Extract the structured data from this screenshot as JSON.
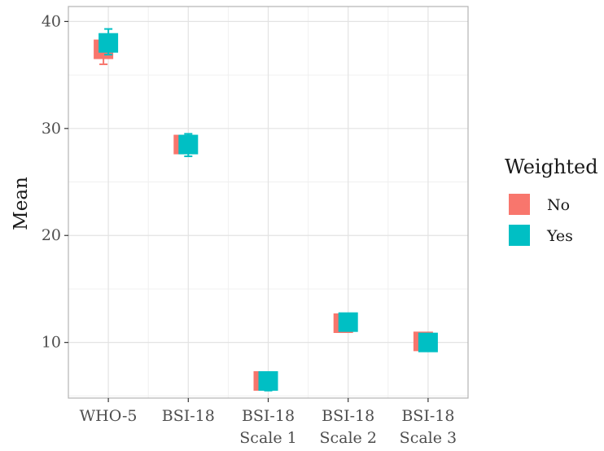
{
  "chart_data": {
    "type": "scatter",
    "ylabel": "Mean",
    "xlabel": "",
    "ylim": [
      4.8,
      41.4
    ],
    "yticks": [
      10,
      20,
      30,
      40
    ],
    "grid": true,
    "categories": [
      [
        "WHO-5"
      ],
      [
        "BSI-18"
      ],
      [
        "BSI-18",
        "Scale 1"
      ],
      [
        "BSI-18",
        "Scale 2"
      ],
      [
        "BSI-18",
        "Scale 3"
      ]
    ],
    "legend": {
      "title": "Weighted",
      "position": "right"
    },
    "series": [
      {
        "name": "No",
        "color": "#F8766D",
        "values": [
          37.4,
          28.5,
          6.4,
          11.8,
          10.1
        ],
        "error_low": [
          36.0,
          27.7,
          5.6,
          11.0,
          9.3
        ],
        "error_high": [
          38.4,
          29.3,
          7.2,
          12.6,
          10.9
        ]
      },
      {
        "name": "Yes",
        "color": "#00BFC4",
        "values": [
          38.0,
          28.5,
          6.4,
          11.9,
          10.0
        ],
        "error_low": [
          36.9,
          27.4,
          5.5,
          11.1,
          9.2
        ],
        "error_high": [
          39.3,
          29.5,
          7.2,
          12.7,
          10.8
        ]
      }
    ]
  }
}
